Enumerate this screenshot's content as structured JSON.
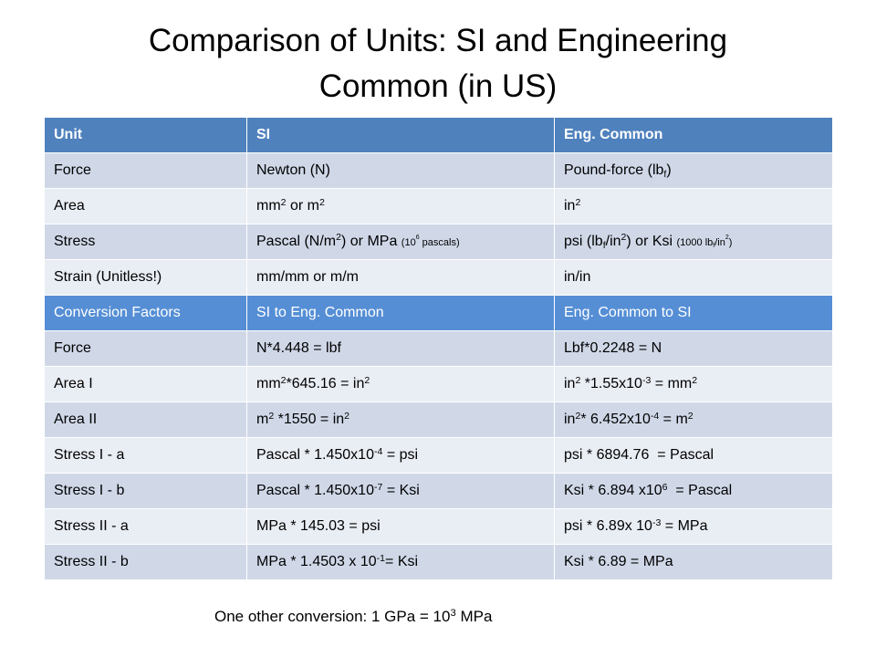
{
  "colors": {
    "title_text": "#000000",
    "header_bg": "#4F81BD",
    "subheader_bg": "#558ED5",
    "header_text": "#FFFFFF",
    "band_dark": "#D0D8E8",
    "band_light": "#E9EDF4"
  },
  "title_lines": [
    "Comparison of Units: SI and Engineering",
    "Common (in US)"
  ],
  "table": {
    "rows": [
      {
        "type": "header",
        "cells": [
          [
            {
              "t": "Unit"
            }
          ],
          [
            {
              "t": "SI"
            }
          ],
          [
            {
              "t": "Eng. Common"
            }
          ]
        ]
      },
      {
        "type": "body",
        "cells": [
          [
            {
              "t": "Force"
            }
          ],
          [
            {
              "t": "Newton (N)"
            }
          ],
          [
            {
              "t": "Pound-force (lb"
            },
            {
              "t": "f",
              "f": "sub"
            },
            {
              "t": ")"
            }
          ]
        ]
      },
      {
        "type": "body",
        "cells": [
          [
            {
              "t": "Area"
            }
          ],
          [
            {
              "t": "mm"
            },
            {
              "t": "2",
              "f": "sup"
            },
            {
              "t": " or m"
            },
            {
              "t": "2",
              "f": "sup"
            }
          ],
          [
            {
              "t": "in"
            },
            {
              "t": "2",
              "f": "sup"
            }
          ]
        ]
      },
      {
        "type": "body",
        "cells": [
          [
            {
              "t": "Stress"
            }
          ],
          [
            {
              "t": "Pascal (N/m"
            },
            {
              "t": "2",
              "f": "sup"
            },
            {
              "t": ") or MPa "
            },
            {
              "t": "(10",
              "f": "small"
            },
            {
              "t": "6",
              "f": "small-sup"
            },
            {
              "t": " pascals)",
              "f": "small"
            }
          ],
          [
            {
              "t": "psi (lb"
            },
            {
              "t": "f",
              "f": "sub"
            },
            {
              "t": "/in"
            },
            {
              "t": "2",
              "f": "sup"
            },
            {
              "t": ") or Ksi "
            },
            {
              "t": "(1000 lb",
              "f": "small"
            },
            {
              "t": "f",
              "f": "small-sub"
            },
            {
              "t": "/in",
              "f": "small"
            },
            {
              "t": "2",
              "f": "small-sup"
            },
            {
              "t": ")",
              "f": "small"
            }
          ]
        ]
      },
      {
        "type": "body",
        "cells": [
          [
            {
              "t": "Strain (Unitless!)"
            }
          ],
          [
            {
              "t": "mm/mm or m/m"
            }
          ],
          [
            {
              "t": "in/in"
            }
          ]
        ]
      },
      {
        "type": "header",
        "cells": [
          [
            {
              "t": "Conversion Factors"
            }
          ],
          [
            {
              "t": "SI to Eng. Common"
            }
          ],
          [
            {
              "t": "Eng. Common to SI"
            }
          ]
        ]
      },
      {
        "type": "body",
        "cells": [
          [
            {
              "t": "Force"
            }
          ],
          [
            {
              "t": "N*4.448 = lbf"
            }
          ],
          [
            {
              "t": "Lbf*0.2248 = N"
            }
          ]
        ]
      },
      {
        "type": "body",
        "cells": [
          [
            {
              "t": "Area I"
            }
          ],
          [
            {
              "t": "mm"
            },
            {
              "t": "2",
              "f": "sup"
            },
            {
              "t": "*645.16 = in"
            },
            {
              "t": "2",
              "f": "sup"
            }
          ],
          [
            {
              "t": "in"
            },
            {
              "t": "2",
              "f": "sup"
            },
            {
              "t": " *1.55x10"
            },
            {
              "t": "-3",
              "f": "sup"
            },
            {
              "t": " = mm"
            },
            {
              "t": "2",
              "f": "sup"
            }
          ]
        ]
      },
      {
        "type": "body",
        "cells": [
          [
            {
              "t": "Area II"
            }
          ],
          [
            {
              "t": "m"
            },
            {
              "t": "2",
              "f": "sup"
            },
            {
              "t": " *1550 = in"
            },
            {
              "t": "2",
              "f": "sup"
            }
          ],
          [
            {
              "t": "in"
            },
            {
              "t": "2",
              "f": "sup"
            },
            {
              "t": "* 6.452x10"
            },
            {
              "t": "-4",
              "f": "sup"
            },
            {
              "t": " = m"
            },
            {
              "t": "2",
              "f": "sup"
            }
          ]
        ]
      },
      {
        "type": "body",
        "cells": [
          [
            {
              "t": "Stress I - a"
            }
          ],
          [
            {
              "t": "Pascal * 1.450x10"
            },
            {
              "t": "-4",
              "f": "sup"
            },
            {
              "t": " = psi"
            }
          ],
          [
            {
              "t": "psi * 6894.76  = Pascal"
            }
          ]
        ]
      },
      {
        "type": "body",
        "cells": [
          [
            {
              "t": "Stress I - b"
            }
          ],
          [
            {
              "t": "Pascal * 1.450x10"
            },
            {
              "t": "-7",
              "f": "sup"
            },
            {
              "t": " = Ksi"
            }
          ],
          [
            {
              "t": "Ksi * 6.894 x10"
            },
            {
              "t": "6",
              "f": "sup"
            },
            {
              "t": "  = Pascal"
            }
          ]
        ]
      },
      {
        "type": "body",
        "cells": [
          [
            {
              "t": "Stress II - a"
            }
          ],
          [
            {
              "t": "MPa * 145.03 = psi"
            }
          ],
          [
            {
              "t": "psi * 6.89x 10"
            },
            {
              "t": "-3",
              "f": "sup"
            },
            {
              "t": " = MPa"
            }
          ]
        ]
      },
      {
        "type": "body",
        "cells": [
          [
            {
              "t": "Stress II - b"
            }
          ],
          [
            {
              "t": "MPa * 1.4503 x 10"
            },
            {
              "t": "-1",
              "f": "sup"
            },
            {
              "t": "= Ksi"
            }
          ],
          [
            {
              "t": "Ksi * 6.89 = MPa"
            }
          ]
        ]
      }
    ]
  },
  "footnote": [
    {
      "t": "One other conversion: 1 GPa = 10"
    },
    {
      "t": "3",
      "f": "sup"
    },
    {
      "t": " MPa"
    }
  ]
}
